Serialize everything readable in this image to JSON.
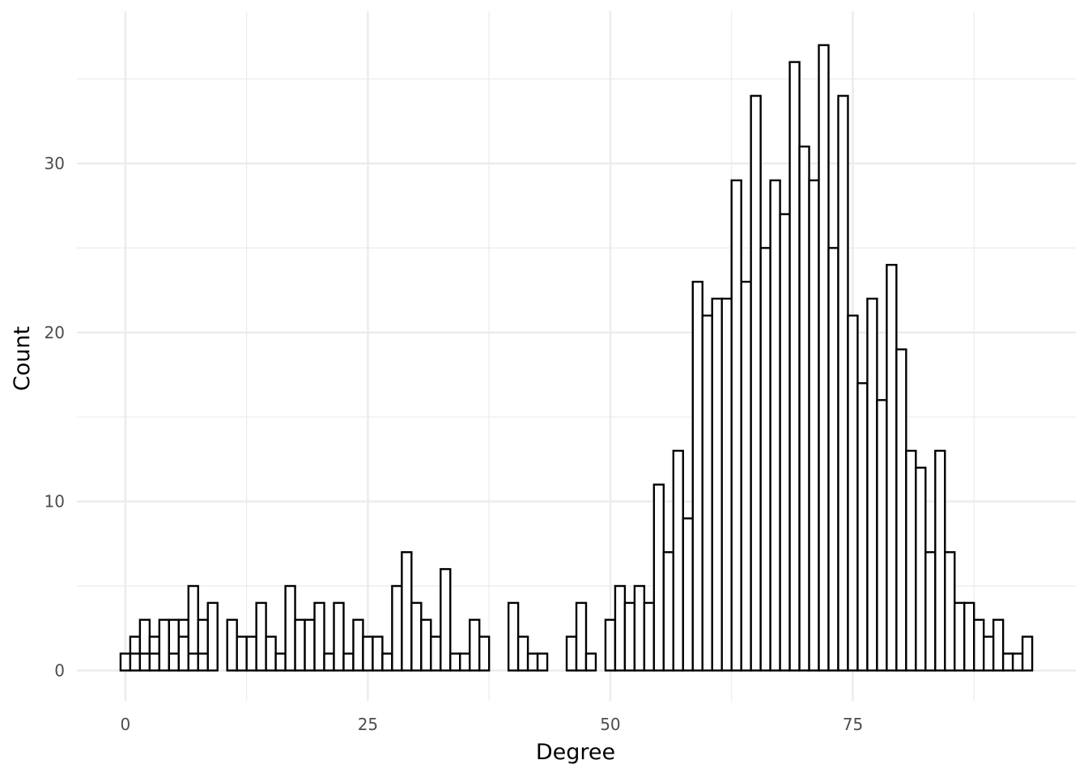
{
  "chart_data": {
    "type": "bar",
    "title": "",
    "xlabel": "Degree",
    "ylabel": "Count",
    "xlim": [
      -5,
      98
    ],
    "ylim": [
      -1.8,
      39
    ],
    "x_ticks": [
      0,
      25,
      50,
      75
    ],
    "x_tick_labels": [
      "0",
      "25",
      "50",
      "75"
    ],
    "y_ticks": [
      0,
      10,
      20,
      30
    ],
    "y_tick_labels": [
      "0",
      "10",
      "20",
      "30"
    ],
    "grid": true,
    "legend": "none",
    "bar_fill": "#ffffff",
    "bar_stroke": "#000000",
    "grid_color": "#ebebeb",
    "x": [
      0,
      1,
      2,
      3,
      4,
      5,
      6,
      7,
      8,
      9,
      10,
      11,
      12,
      13,
      14,
      15,
      16,
      17,
      18,
      19,
      20,
      21,
      22,
      23,
      24,
      25,
      26,
      27,
      28,
      29,
      30,
      31,
      32,
      33,
      34,
      35,
      36,
      37,
      38,
      39,
      40,
      41,
      42,
      43,
      44,
      45,
      46,
      47,
      48,
      49,
      50,
      51,
      52,
      53,
      54,
      55,
      56,
      57,
      58,
      59,
      60,
      61,
      62,
      63,
      64,
      65,
      66,
      67,
      68,
      69,
      70,
      71,
      72,
      73,
      74,
      75,
      76,
      77,
      78,
      79,
      80,
      81,
      82,
      83,
      84,
      85,
      86,
      87,
      88,
      89,
      90,
      91,
      92,
      93
    ],
    "values": [
      1,
      2,
      3,
      2,
      3,
      3,
      3,
      5,
      3,
      4,
      0,
      3,
      2,
      2,
      4,
      2,
      1,
      5,
      3,
      3,
      4,
      1,
      4,
      1,
      3,
      2,
      2,
      1,
      5,
      7,
      4,
      3,
      2,
      6,
      1,
      1,
      3,
      2,
      0,
      0,
      4,
      2,
      1,
      1,
      0,
      0,
      2,
      4,
      1,
      0,
      3,
      5,
      4,
      5,
      4,
      11,
      7,
      13,
      9,
      23,
      21,
      22,
      22,
      29,
      23,
      34,
      25,
      29,
      27,
      36,
      31,
      29,
      37,
      25,
      34,
      21,
      17,
      22,
      16,
      24,
      19,
      13,
      12,
      7,
      13,
      7,
      4,
      4,
      3,
      2,
      3,
      1,
      1,
      2
    ],
    "inner_values": [
      0,
      1,
      1,
      1,
      0,
      1,
      2,
      1,
      1,
      0,
      0,
      0,
      0,
      0,
      0,
      0,
      0,
      0,
      0,
      0,
      0,
      0,
      0,
      0,
      0,
      0,
      0,
      0,
      0,
      0,
      0,
      0,
      0,
      0,
      0,
      0,
      0,
      0,
      0,
      0,
      0,
      0,
      0,
      0,
      0,
      0,
      0,
      0,
      0,
      0,
      0,
      0,
      0,
      0,
      0,
      0,
      0,
      0,
      0,
      0,
      0,
      0,
      0,
      0,
      0,
      0,
      0,
      0,
      0,
      0,
      0,
      0,
      0,
      0,
      0,
      0,
      0,
      0,
      0,
      0,
      0,
      0,
      0,
      0,
      0,
      0,
      0,
      0,
      0,
      0,
      0,
      0,
      0,
      0
    ]
  }
}
